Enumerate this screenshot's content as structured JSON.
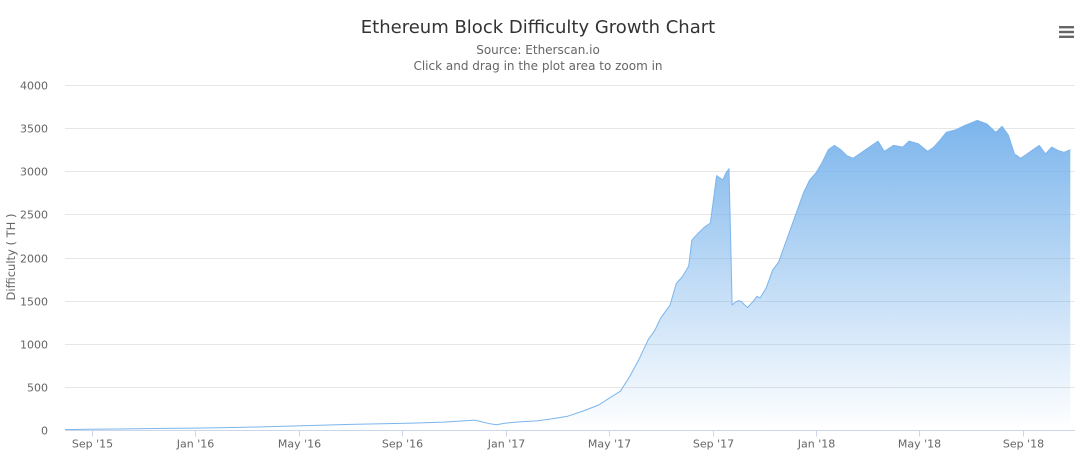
{
  "colors": {
    "series": "#7cb5ec",
    "grid": "#e6e6e6",
    "axis": "#ccd6eb",
    "text": "#666666",
    "title": "#333333"
  },
  "menu": {
    "icon": "hamburger-menu-icon"
  },
  "chart_data": {
    "type": "area",
    "title": "Ethereum Block Difficulty Growth Chart",
    "subtitle": "Source: Etherscan.io",
    "hint": "Click and drag in the plot area to zoom in",
    "xlabel": "",
    "ylabel": "Difficulty ( TH )",
    "xlim": [
      2015.58,
      2018.835
    ],
    "ylim": [
      0,
      4000
    ],
    "yticks": [
      0,
      500,
      1000,
      1500,
      2000,
      2500,
      3000,
      3500,
      4000
    ],
    "xticks": [
      {
        "label": "Sep '15",
        "value": 2015.667
      },
      {
        "label": "Jan '16",
        "value": 2016.0
      },
      {
        "label": "May '16",
        "value": 2016.333
      },
      {
        "label": "Sep '16",
        "value": 2016.667
      },
      {
        "label": "Jan '17",
        "value": 2017.0
      },
      {
        "label": "May '17",
        "value": 2017.333
      },
      {
        "label": "Sep '17",
        "value": 2017.667
      },
      {
        "label": "Jan '18",
        "value": 2018.0
      },
      {
        "label": "May '18",
        "value": 2018.333
      },
      {
        "label": "Sep '18",
        "value": 2018.667
      }
    ],
    "grid": true,
    "legend": "none",
    "series": [
      {
        "name": "Difficulty",
        "x": [
          2015.58,
          2015.65,
          2015.75,
          2015.9,
          2016.0,
          2016.1,
          2016.2,
          2016.3,
          2016.4,
          2016.5,
          2016.6,
          2016.7,
          2016.8,
          2016.9,
          2016.95,
          2016.97,
          2017.0,
          2017.05,
          2017.1,
          2017.15,
          2017.2,
          2017.25,
          2017.3,
          2017.33,
          2017.37,
          2017.4,
          2017.43,
          2017.46,
          2017.48,
          2017.5,
          2017.53,
          2017.55,
          2017.57,
          2017.59,
          2017.6,
          2017.62,
          2017.64,
          2017.66,
          2017.68,
          2017.7,
          2017.71,
          2017.72,
          2017.73,
          2017.74,
          2017.75,
          2017.76,
          2017.77,
          2017.78,
          2017.79,
          2017.8,
          2017.81,
          2017.82,
          2017.84,
          2017.86,
          2017.88,
          2017.9,
          2017.92,
          2017.94,
          2017.96,
          2017.98,
          2018.0,
          2018.02,
          2018.04,
          2018.06,
          2018.08,
          2018.1,
          2018.12,
          2018.14,
          2018.16,
          2018.18,
          2018.2,
          2018.22,
          2018.25,
          2018.28,
          2018.3,
          2018.33,
          2018.36,
          2018.38,
          2018.4,
          2018.42,
          2018.45,
          2018.48,
          2018.5,
          2018.52,
          2018.55,
          2018.58,
          2018.6,
          2018.62,
          2018.64,
          2018.66,
          2018.68,
          2018.7,
          2018.72,
          2018.74,
          2018.76,
          2018.78,
          2018.8,
          2018.82
        ],
        "values": [
          5,
          8,
          12,
          18,
          22,
          28,
          35,
          45,
          55,
          65,
          72,
          80,
          92,
          115,
          72,
          60,
          80,
          95,
          105,
          130,
          160,
          220,
          290,
          360,
          450,
          620,
          820,
          1050,
          1150,
          1300,
          1450,
          1700,
          1780,
          1900,
          2200,
          2280,
          2350,
          2400,
          2950,
          2900,
          2980,
          3030,
          1450,
          1480,
          1500,
          1490,
          1450,
          1420,
          1460,
          1500,
          1550,
          1530,
          1650,
          1850,
          1950,
          2150,
          2350,
          2550,
          2750,
          2900,
          2980,
          3100,
          3250,
          3300,
          3250,
          3180,
          3150,
          3200,
          3250,
          3300,
          3350,
          3230,
          3300,
          3280,
          3350,
          3320,
          3230,
          3280,
          3360,
          3450,
          3480,
          3530,
          3560,
          3590,
          3550,
          3450,
          3520,
          3420,
          3200,
          3150,
          3200,
          3250,
          3300,
          3200,
          3280,
          3240,
          3220,
          3250
        ]
      }
    ]
  }
}
